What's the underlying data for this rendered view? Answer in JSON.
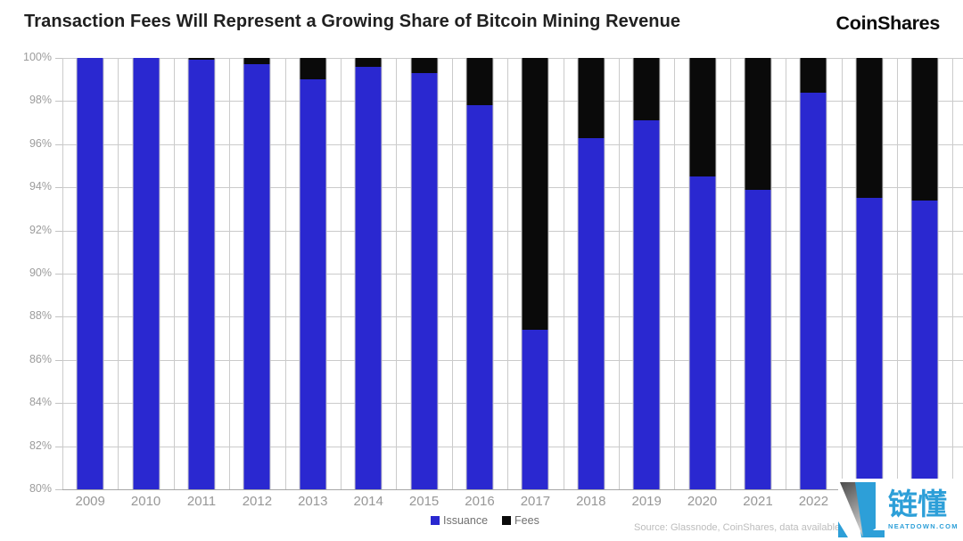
{
  "header": {
    "title": "Transaction Fees Will Represent a Growing Share of Bitcoin Mining Revenue",
    "brand": "CoinShares"
  },
  "chart_data": {
    "type": "bar",
    "stacked": true,
    "title": "Transaction Fees Will Represent a Growing Share of Bitcoin Mining Revenue",
    "categories": [
      "2009",
      "2010",
      "2011",
      "2012",
      "2013",
      "2014",
      "2015",
      "2016",
      "2017",
      "2018",
      "2019",
      "2020",
      "2021",
      "2022",
      "",
      ""
    ],
    "series": [
      {
        "name": "Issuance",
        "color": "#2a28d0",
        "values": [
          100.0,
          100.0,
          99.9,
          99.7,
          99.0,
          99.6,
          99.3,
          97.8,
          87.4,
          96.3,
          97.1,
          94.5,
          93.9,
          98.4,
          93.5,
          93.4
        ]
      },
      {
        "name": "Fees",
        "color": "#0a0a0a",
        "values": [
          0.0,
          0.0,
          0.1,
          0.3,
          1.0,
          0.4,
          0.7,
          2.2,
          12.6,
          3.7,
          2.9,
          5.5,
          6.1,
          1.6,
          6.5,
          6.6
        ]
      }
    ],
    "xlabel": "",
    "ylabel": "",
    "ylim": [
      80,
      100
    ],
    "ytick_step": 2,
    "ytick_suffix": "%",
    "grid": "horizontal every 2% plus vertical category boundaries",
    "legend_position": "bottom-center"
  },
  "source_note": "Source: Glassnode, CoinShares, data available as of",
  "watermark": {
    "brand_cn": "链懂",
    "brand_site": "NEATDOWN.COM",
    "color": "#2d9fd8"
  }
}
